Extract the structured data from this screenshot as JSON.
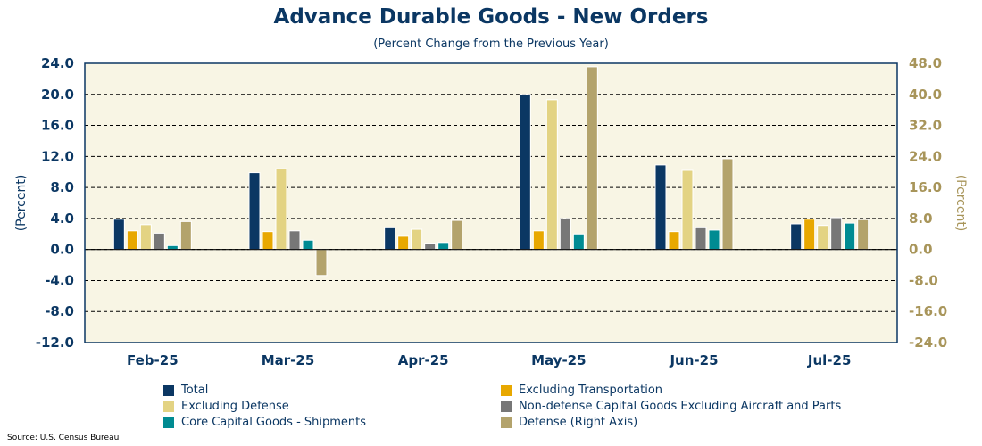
{
  "chart_data": {
    "type": "bar",
    "title": "Advance Durable Goods - New Orders",
    "subtitle": "(Percent Change from the Previous Year)",
    "ylabel": "(Percent)",
    "ylabel_right": "(Percent)",
    "ylim": [
      -12,
      24
    ],
    "ylim_right": [
      -24,
      48
    ],
    "yticks": [
      "24.0",
      "20.0",
      "16.0",
      "12.0",
      "8.0",
      "4.0",
      "0.0",
      "-4.0",
      "-8.0",
      "-12.0"
    ],
    "yticks_right": [
      "48.0",
      "40.0",
      "32.0",
      "24.0",
      "16.0",
      "8.0",
      "0.0",
      "-8.0",
      "-16.0",
      "-24.0"
    ],
    "grid": true,
    "legend_placement": "bottom",
    "categories": [
      "Feb-25",
      "Mar-25",
      "Apr-25",
      "May-25",
      "Jun-25",
      "Jul-25"
    ],
    "series": [
      {
        "name": "Total",
        "color": "#0b3763",
        "axis": "left",
        "values": [
          3.9,
          9.9,
          2.8,
          20.0,
          10.9,
          3.3
        ]
      },
      {
        "name": "Excluding Transportation",
        "color": "#e8a800",
        "axis": "left",
        "values": [
          2.4,
          2.3,
          1.7,
          2.4,
          2.3,
          3.9
        ]
      },
      {
        "name": "Excluding Defense",
        "color": "#e3d383",
        "axis": "left",
        "values": [
          3.2,
          10.4,
          2.6,
          19.3,
          10.2,
          3.1
        ]
      },
      {
        "name": "Non-defense Capital Goods Excluding Aircraft and Parts",
        "color": "#777777",
        "axis": "left",
        "values": [
          2.1,
          2.4,
          0.8,
          4.0,
          2.8,
          4.1
        ]
      },
      {
        "name": "Core Capital Goods - Shipments",
        "color": "#008b92",
        "axis": "left",
        "values": [
          0.5,
          1.2,
          0.9,
          2.0,
          2.5,
          3.4
        ]
      },
      {
        "name": "Defense (Right Axis)",
        "color": "#b3a36c",
        "axis": "right",
        "values": [
          7.2,
          -6.7,
          7.5,
          47.1,
          23.4,
          7.7
        ]
      }
    ]
  },
  "source": "Source: U.S. Census Bureau",
  "colors": {
    "navy": "#0b3763",
    "tan": "#a8955a",
    "plot_bg": "#f8f5e4"
  }
}
